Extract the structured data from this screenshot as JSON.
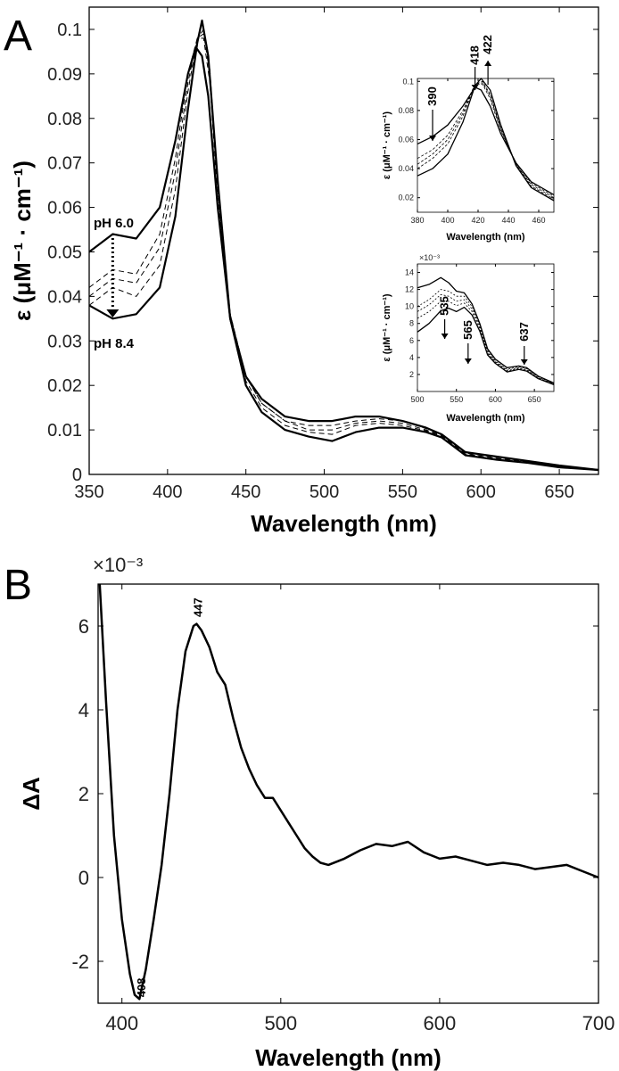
{
  "panels": {
    "a_letter": "A",
    "b_letter": "B"
  },
  "chart_data": [
    {
      "id": "A",
      "type": "line",
      "xlabel": "Wavelength (nm)",
      "ylabel": "ε (μM⁻¹ · cm⁻¹)",
      "xlim": [
        350,
        675
      ],
      "ylim": [
        0,
        0.105
      ],
      "xticks": [
        350,
        400,
        450,
        500,
        550,
        600,
        650
      ],
      "yticks": [
        0,
        0.01,
        0.02,
        0.03,
        0.04,
        0.05,
        0.06,
        0.07,
        0.08,
        0.09,
        0.1
      ],
      "annotations": [
        "pH 6.0",
        "pH 8.4"
      ],
      "series": [
        {
          "style": "solid",
          "x": [
            350,
            365,
            380,
            395,
            405,
            413,
            418,
            422,
            426,
            432,
            440,
            450,
            460,
            475,
            490,
            505,
            520,
            535,
            550,
            565,
            575,
            590,
            610,
            630,
            650,
            675
          ],
          "y": [
            0.05,
            0.054,
            0.053,
            0.06,
            0.075,
            0.09,
            0.096,
            0.094,
            0.085,
            0.06,
            0.035,
            0.022,
            0.017,
            0.013,
            0.012,
            0.012,
            0.013,
            0.013,
            0.012,
            0.0105,
            0.009,
            0.005,
            0.004,
            0.003,
            0.002,
            0.001
          ]
        },
        {
          "style": "dashed",
          "x": [
            350,
            365,
            380,
            395,
            405,
            413,
            419,
            423,
            427,
            432,
            440,
            450,
            460,
            475,
            490,
            505,
            520,
            535,
            550,
            565,
            575,
            590,
            610,
            630,
            650,
            675
          ],
          "y": [
            0.042,
            0.046,
            0.045,
            0.054,
            0.071,
            0.09,
            0.098,
            0.098,
            0.088,
            0.062,
            0.036,
            0.022,
            0.016,
            0.012,
            0.011,
            0.011,
            0.012,
            0.0125,
            0.012,
            0.0103,
            0.009,
            0.0048,
            0.0038,
            0.003,
            0.002,
            0.001
          ]
        },
        {
          "style": "dashed",
          "x": [
            350,
            365,
            380,
            395,
            405,
            413,
            419,
            423,
            427,
            432,
            440,
            450,
            460,
            475,
            490,
            505,
            520,
            535,
            550,
            565,
            575,
            590,
            610,
            630,
            650,
            675
          ],
          "y": [
            0.04,
            0.044,
            0.043,
            0.051,
            0.068,
            0.088,
            0.098,
            0.099,
            0.09,
            0.064,
            0.036,
            0.022,
            0.016,
            0.012,
            0.01,
            0.01,
            0.0115,
            0.012,
            0.0115,
            0.01,
            0.0088,
            0.0046,
            0.0036,
            0.0028,
            0.0018,
            0.001
          ]
        },
        {
          "style": "dashed",
          "x": [
            350,
            365,
            380,
            395,
            405,
            413,
            419,
            423,
            427,
            432,
            440,
            450,
            460,
            475,
            490,
            505,
            520,
            535,
            550,
            565,
            575,
            590,
            610,
            630,
            650,
            675
          ],
          "y": [
            0.038,
            0.042,
            0.04,
            0.047,
            0.064,
            0.086,
            0.098,
            0.1,
            0.091,
            0.065,
            0.036,
            0.021,
            0.015,
            0.011,
            0.0095,
            0.009,
            0.011,
            0.0115,
            0.011,
            0.0098,
            0.0086,
            0.0045,
            0.0035,
            0.0027,
            0.0017,
            0.001
          ]
        },
        {
          "style": "solid",
          "x": [
            350,
            365,
            380,
            395,
            405,
            413,
            419,
            422,
            426,
            432,
            440,
            450,
            460,
            475,
            490,
            505,
            520,
            535,
            550,
            565,
            575,
            590,
            610,
            630,
            650,
            675
          ],
          "y": [
            0.038,
            0.035,
            0.036,
            0.042,
            0.058,
            0.082,
            0.097,
            0.102,
            0.094,
            0.066,
            0.035,
            0.02,
            0.014,
            0.01,
            0.0085,
            0.0075,
            0.0095,
            0.0105,
            0.0105,
            0.0095,
            0.0083,
            0.0043,
            0.0033,
            0.0026,
            0.0016,
            0.001
          ]
        }
      ]
    },
    {
      "id": "A-inset-1",
      "type": "line",
      "xlabel": "Wavelength (nm)",
      "ylabel": "ε (μM⁻¹ · cm⁻¹)",
      "xlim": [
        380,
        470
      ],
      "ylim": [
        0.01,
        0.102
      ],
      "xticks": [
        380,
        400,
        420,
        440,
        460
      ],
      "yticks": [
        0.02,
        0.04,
        0.06,
        0.08,
        0.1
      ],
      "annotations": [
        "390",
        "418",
        "422"
      ],
      "series": [
        {
          "style": "solid",
          "x": [
            380,
            390,
            400,
            410,
            418,
            422,
            428,
            435,
            445,
            455,
            470
          ],
          "y": [
            0.057,
            0.062,
            0.07,
            0.083,
            0.096,
            0.094,
            0.083,
            0.064,
            0.044,
            0.031,
            0.022
          ]
        },
        {
          "style": "dashed",
          "x": [
            380,
            390,
            400,
            410,
            418,
            423,
            428,
            435,
            445,
            455,
            470
          ],
          "y": [
            0.047,
            0.053,
            0.063,
            0.08,
            0.098,
            0.098,
            0.088,
            0.066,
            0.044,
            0.03,
            0.021
          ]
        },
        {
          "style": "dashed",
          "x": [
            380,
            390,
            400,
            410,
            418,
            423,
            428,
            435,
            445,
            455,
            470
          ],
          "y": [
            0.043,
            0.05,
            0.06,
            0.078,
            0.098,
            0.099,
            0.09,
            0.067,
            0.043,
            0.029,
            0.02
          ]
        },
        {
          "style": "dashed",
          "x": [
            380,
            390,
            400,
            410,
            418,
            423,
            428,
            435,
            445,
            455,
            470
          ],
          "y": [
            0.04,
            0.047,
            0.057,
            0.076,
            0.098,
            0.1,
            0.091,
            0.068,
            0.043,
            0.028,
            0.019
          ]
        },
        {
          "style": "solid",
          "x": [
            380,
            390,
            400,
            410,
            418,
            422,
            428,
            435,
            445,
            455,
            470
          ],
          "y": [
            0.035,
            0.04,
            0.05,
            0.072,
            0.097,
            0.102,
            0.094,
            0.07,
            0.042,
            0.027,
            0.018
          ]
        }
      ]
    },
    {
      "id": "A-inset-2",
      "type": "line",
      "xlabel": "Wavelength (nm)",
      "ylabel": "ε (μM⁻¹ · cm⁻¹)",
      "xlim": [
        500,
        675
      ],
      "ylim": [
        0,
        0.015
      ],
      "exponent": "×10⁻³",
      "xticks": [
        500,
        550,
        600,
        650
      ],
      "ytick_labels": [
        "2",
        "4",
        "6",
        "8",
        "10",
        "12",
        "14"
      ],
      "yticks": [
        0.002,
        0.004,
        0.006,
        0.008,
        0.01,
        0.012,
        0.014
      ],
      "annotations": [
        "535",
        "565",
        "637"
      ],
      "series": [
        {
          "style": "solid",
          "x": [
            500,
            515,
            530,
            540,
            550,
            560,
            570,
            580,
            590,
            600,
            615,
            630,
            640,
            655,
            675
          ],
          "y": [
            0.0122,
            0.0126,
            0.0134,
            0.0128,
            0.0118,
            0.0116,
            0.0103,
            0.008,
            0.005,
            0.0038,
            0.0028,
            0.003,
            0.0028,
            0.0018,
            0.001
          ]
        },
        {
          "style": "dashed",
          "x": [
            500,
            515,
            530,
            540,
            550,
            560,
            570,
            580,
            590,
            600,
            615,
            630,
            640,
            655,
            675
          ],
          "y": [
            0.01,
            0.0108,
            0.012,
            0.0118,
            0.0112,
            0.0112,
            0.01,
            0.0078,
            0.0048,
            0.0036,
            0.0026,
            0.0029,
            0.0027,
            0.0017,
            0.0009
          ]
        },
        {
          "style": "dashed",
          "x": [
            500,
            515,
            530,
            540,
            550,
            560,
            570,
            580,
            590,
            600,
            615,
            630,
            640,
            655,
            675
          ],
          "y": [
            0.0094,
            0.0102,
            0.0114,
            0.0112,
            0.0106,
            0.0108,
            0.0097,
            0.0076,
            0.0046,
            0.0035,
            0.0025,
            0.0028,
            0.0026,
            0.0016,
            0.0009
          ]
        },
        {
          "style": "dashed",
          "x": [
            500,
            515,
            530,
            540,
            550,
            560,
            570,
            580,
            590,
            600,
            615,
            630,
            640,
            655,
            675
          ],
          "y": [
            0.0086,
            0.0094,
            0.0106,
            0.0106,
            0.0101,
            0.0104,
            0.0094,
            0.0074,
            0.0045,
            0.0034,
            0.0024,
            0.0027,
            0.0025,
            0.0016,
            0.0008
          ]
        },
        {
          "style": "solid",
          "x": [
            500,
            515,
            530,
            540,
            550,
            560,
            570,
            580,
            590,
            600,
            615,
            630,
            640,
            655,
            675
          ],
          "y": [
            0.007,
            0.008,
            0.0095,
            0.0098,
            0.0094,
            0.0099,
            0.009,
            0.0071,
            0.0043,
            0.0033,
            0.0023,
            0.0026,
            0.0024,
            0.0015,
            0.0008
          ]
        }
      ]
    },
    {
      "id": "B",
      "type": "line",
      "xlabel": "Wavelength (nm)",
      "ylabel": "ΔA",
      "exponent": "×10⁻³",
      "xlim": [
        385,
        700
      ],
      "ylim": [
        -3,
        7
      ],
      "xticks": [
        400,
        500,
        600,
        700
      ],
      "yticks": [
        -2,
        0,
        2,
        4,
        6
      ],
      "annotations": [
        "408",
        "447"
      ],
      "series": [
        {
          "style": "solid",
          "x": [
            386,
            390,
            395,
            400,
            405,
            408,
            411,
            415,
            420,
            425,
            430,
            435,
            440,
            445,
            447,
            450,
            455,
            460,
            465,
            470,
            475,
            480,
            485,
            490,
            495,
            500,
            505,
            510,
            515,
            520,
            525,
            530,
            540,
            550,
            560,
            570,
            580,
            590,
            600,
            610,
            620,
            630,
            640,
            650,
            660,
            670,
            680,
            690,
            700
          ],
          "y": [
            7.0,
            4.2,
            1.0,
            -1.0,
            -2.3,
            -2.8,
            -2.9,
            -2.2,
            -1.0,
            0.3,
            2.0,
            4.0,
            5.4,
            6.0,
            6.05,
            5.9,
            5.5,
            4.9,
            4.6,
            3.8,
            3.1,
            2.6,
            2.2,
            1.9,
            1.9,
            1.6,
            1.3,
            1.0,
            0.7,
            0.5,
            0.35,
            0.3,
            0.45,
            0.65,
            0.8,
            0.75,
            0.85,
            0.6,
            0.45,
            0.5,
            0.4,
            0.3,
            0.35,
            0.3,
            0.2,
            0.25,
            0.3,
            0.15,
            0.0
          ]
        }
      ]
    }
  ]
}
